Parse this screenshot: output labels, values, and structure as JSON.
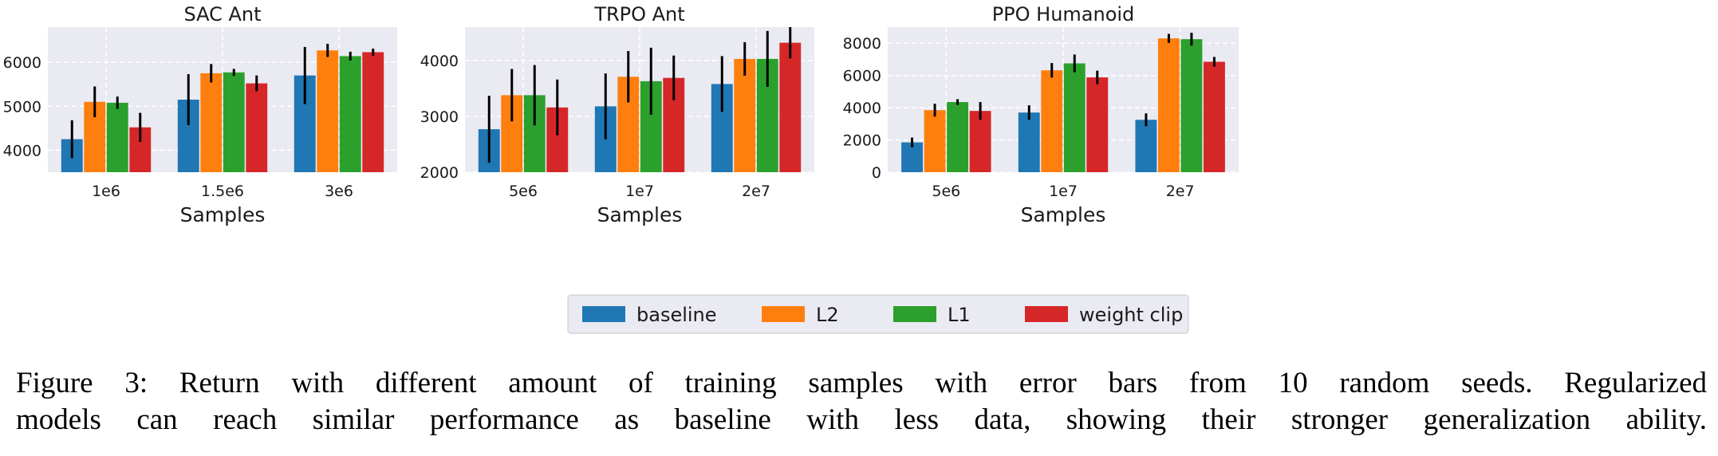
{
  "chart_data": [
    {
      "type": "bar",
      "title": "SAC Ant",
      "xlabel": "",
      "ylabel": "",
      "categories": [
        "1e6",
        "1.5e6",
        "3e6"
      ],
      "ylim": [
        3500,
        6800
      ],
      "yticks": [
        4000,
        5000,
        6000
      ],
      "series": [
        {
          "name": "baseline",
          "color": "#1f77b4",
          "values": [
            4250,
            5150,
            5700
          ],
          "errors": [
            430,
            580,
            650
          ]
        },
        {
          "name": "L2",
          "color": "#ff7f0e",
          "values": [
            5100,
            5750,
            6270
          ],
          "errors": [
            350,
            210,
            150
          ]
        },
        {
          "name": "L1",
          "color": "#2ca02c",
          "values": [
            5080,
            5770,
            6140
          ],
          "errors": [
            140,
            80,
            100
          ]
        },
        {
          "name": "weight clip",
          "color": "#d62728",
          "values": [
            4520,
            5520,
            6230
          ],
          "errors": [
            330,
            180,
            80
          ]
        }
      ]
    },
    {
      "type": "bar",
      "title": "TRPO Ant",
      "xlabel": "Samples",
      "ylabel": "",
      "categories": [
        "5e6",
        "1e7",
        "2e7"
      ],
      "ylim": [
        2000,
        4600
      ],
      "yticks": [
        2000,
        3000,
        4000
      ],
      "series": [
        {
          "name": "baseline",
          "color": "#1f77b4",
          "values": [
            2770,
            3180,
            3580
          ],
          "errors": [
            600,
            590,
            500
          ]
        },
        {
          "name": "L2",
          "color": "#ff7f0e",
          "values": [
            3380,
            3710,
            4030
          ],
          "errors": [
            470,
            460,
            300
          ]
        },
        {
          "name": "L1",
          "color": "#2ca02c",
          "values": [
            3380,
            3630,
            4030
          ],
          "errors": [
            540,
            600,
            500
          ]
        },
        {
          "name": "weight clip",
          "color": "#d62728",
          "values": [
            3160,
            3690,
            4320
          ],
          "errors": [
            500,
            400,
            280
          ]
        }
      ]
    },
    {
      "type": "bar",
      "title": "PPO Humanoid",
      "xlabel": "Samples",
      "ylabel": "",
      "categories": [
        "5e6",
        "1e7",
        "2e7"
      ],
      "ylim": [
        0,
        9000
      ],
      "yticks": [
        0,
        2000,
        4000,
        6000,
        8000
      ],
      "series": [
        {
          "name": "baseline",
          "color": "#1f77b4",
          "values": [
            1850,
            3700,
            3250
          ],
          "errors": [
            300,
            450,
            400
          ]
        },
        {
          "name": "L2",
          "color": "#ff7f0e",
          "values": [
            3850,
            6320,
            8300
          ],
          "errors": [
            400,
            450,
            280
          ]
        },
        {
          "name": "L1",
          "color": "#2ca02c",
          "values": [
            4350,
            6750,
            8250
          ],
          "errors": [
            180,
            550,
            400
          ]
        },
        {
          "name": "weight clip",
          "color": "#d62728",
          "values": [
            3800,
            5880,
            6850
          ],
          "errors": [
            550,
            420,
            300
          ]
        }
      ]
    }
  ],
  "legend": {
    "items": [
      {
        "label": "baseline",
        "color": "#1f77b4"
      },
      {
        "label": "L2",
        "color": "#ff7f0e"
      },
      {
        "label": "L1",
        "color": "#2ca02c"
      },
      {
        "label": "weight clip",
        "color": "#d62728"
      }
    ]
  },
  "axis_label": "Samples",
  "caption": {
    "line1": "Figure 3: Return with different amount of training samples with error bars from 10 random seeds. Regularized",
    "line2": "models can reach similar performance as baseline with less data, showing their stronger generalization ability."
  }
}
